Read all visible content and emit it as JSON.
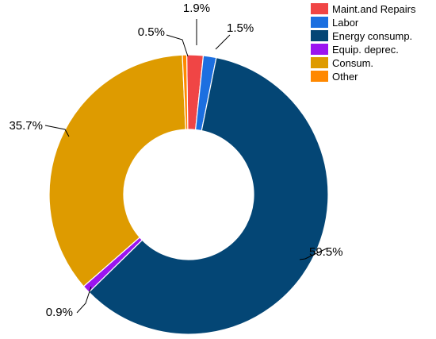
{
  "chart_data": {
    "type": "pie",
    "subtype": "donut",
    "start_angle_deg": -15.5,
    "direction": "clockwise",
    "legend_position": "top-right",
    "slices": [
      {
        "name": "Maint.and Repairs",
        "value": 1.9,
        "label": "1.9%",
        "color": "#f04545"
      },
      {
        "name": "Labor",
        "value": 1.5,
        "label": "1.5%",
        "color": "#1c6fe0"
      },
      {
        "name": "Energy consump.",
        "value": 59.5,
        "label": "59.5%",
        "color": "#044675"
      },
      {
        "name": "Equip. deprec.",
        "value": 0.9,
        "label": "0.9%",
        "color": "#9b15f0"
      },
      {
        "name": "Consum.",
        "value": 35.7,
        "label": "35.7%",
        "color": "#de9b00"
      },
      {
        "name": "Other",
        "value": 0.5,
        "label": "0.5%",
        "color": "#ff8800"
      }
    ]
  }
}
